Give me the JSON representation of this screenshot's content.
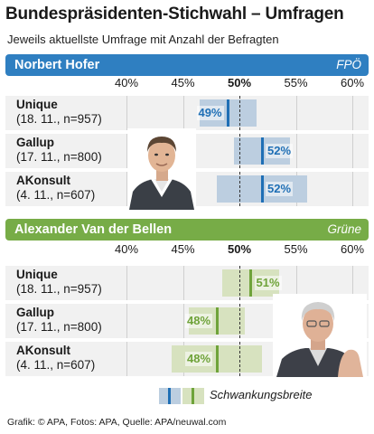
{
  "title": "Bundespräsidenten-Stichwahl – Umfragen",
  "subtitle": "Jeweils aktuellste Umfrage mit Anzahl der Befragten",
  "legend_label": "Schwankungsbreite",
  "credit": "Grafik: © APA, Fotos: APA, Quelle: APA/neuwal.com",
  "colors": {
    "hofer_band": "#2f7fc1",
    "hofer_range": "#bccee0",
    "hofer_mark": "#1f6fb5",
    "vdb_band": "#77ac47",
    "vdb_range": "#d7e2bf",
    "vdb_mark": "#6fa33a",
    "row_bg": "#f1f1f1"
  },
  "chart_data": [
    {
      "type": "bar",
      "title": "Norbert Hofer",
      "party": "FPÖ",
      "unit": "%",
      "xlim": [
        40,
        60
      ],
      "ticks": [
        "40%",
        "45%",
        "50%",
        "55%",
        "60%"
      ],
      "reference_line": 50,
      "polls": [
        {
          "institute": "Unique",
          "detail": "(18. 11., n=957)",
          "value": 49,
          "label": "49%",
          "range": [
            46.5,
            51.5
          ]
        },
        {
          "institute": "Gallup",
          "detail": "(17. 11., n=800)",
          "value": 52,
          "label": "52%",
          "range": [
            49.5,
            54.5
          ]
        },
        {
          "institute": "AKonsult",
          "detail": "(4. 11., n=607)",
          "value": 52,
          "label": "52%",
          "range": [
            48,
            56
          ]
        }
      ]
    },
    {
      "type": "bar",
      "title": "Alexander Van der Bellen",
      "party": "Grüne",
      "unit": "%",
      "xlim": [
        40,
        60
      ],
      "ticks": [
        "40%",
        "45%",
        "50%",
        "55%",
        "60%"
      ],
      "reference_line": 50,
      "polls": [
        {
          "institute": "Unique",
          "detail": "(18. 11., n=957)",
          "value": 51,
          "label": "51%",
          "range": [
            48.5,
            53.5
          ]
        },
        {
          "institute": "Gallup",
          "detail": "(17. 11., n=800)",
          "value": 48,
          "label": "48%",
          "range": [
            45.5,
            50.5
          ]
        },
        {
          "institute": "AKonsult",
          "detail": "(4. 11., n=607)",
          "value": 48,
          "label": "48%",
          "range": [
            44,
            52
          ]
        }
      ]
    }
  ]
}
